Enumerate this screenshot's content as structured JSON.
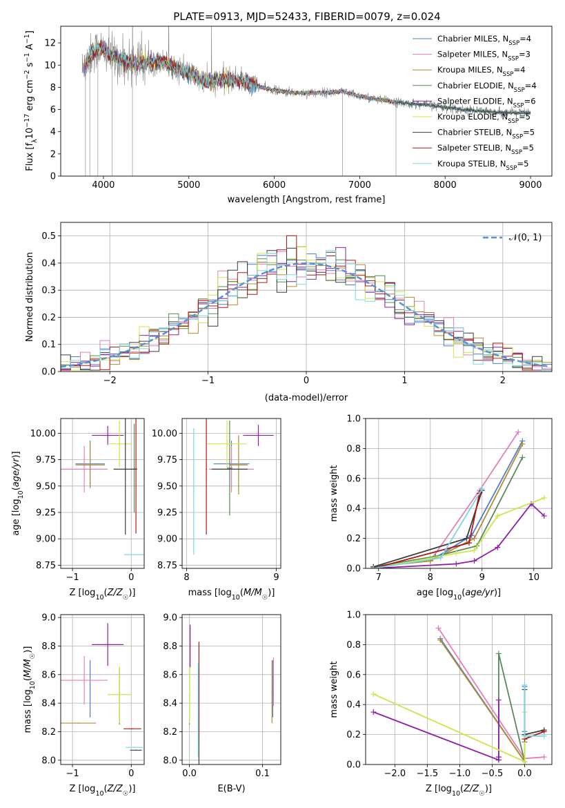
{
  "figure": {
    "title": "PLATE=0913, MJD=52433, FIBERID=0079, z=0.024",
    "model_colors": {
      "Chabrier MILES": "#4a7ed0",
      "Salpeter MILES": "#e47fb8",
      "Kroupa MILES": "#b38a30",
      "Chabrier ELODIE": "#568a56",
      "Salpeter ELODIE": "#8d1ea8",
      "Kroupa ELODIE": "#cfe548",
      "Chabrier STELIB": "#3a3a3a",
      "Salpeter STELIB": "#b01515",
      "Kroupa STELIB": "#7bd7e0"
    }
  },
  "chart_data": [
    {
      "id": "spectrum",
      "type": "line",
      "xlabel": "wavelength [Angstrom, rest frame]",
      "ylabel_parts": [
        "Flux [f",
        "λ",
        "10",
        "−17",
        " erg cm",
        "−2",
        " s",
        "−1",
        " A",
        "−1",
        "]"
      ],
      "xlim": [
        3500,
        9250
      ],
      "ylim": [
        0,
        13.5
      ],
      "xticks": [
        4000,
        5000,
        6000,
        7000,
        8000,
        9000
      ],
      "yticks": [
        0,
        2,
        4,
        6,
        8,
        10,
        12
      ],
      "grid": false,
      "legend_position": "top-right",
      "observed_color": "#808080",
      "observed_continuum": [
        [
          3750,
          9.6
        ],
        [
          3850,
          10.9
        ],
        [
          3950,
          11.6
        ],
        [
          4050,
          11.0
        ],
        [
          4150,
          10.6
        ],
        [
          4300,
          10.3
        ],
        [
          4500,
          10.2
        ],
        [
          4700,
          10.3
        ],
        [
          4860,
          9.7
        ],
        [
          5000,
          9.3
        ],
        [
          5200,
          8.5
        ],
        [
          5400,
          8.7
        ],
        [
          5600,
          8.6
        ],
        [
          5900,
          7.9
        ],
        [
          6100,
          7.6
        ],
        [
          6300,
          7.5
        ],
        [
          6560,
          7.5
        ],
        [
          6800,
          7.6
        ],
        [
          7000,
          7.2
        ],
        [
          7200,
          6.9
        ],
        [
          7500,
          6.6
        ],
        [
          7800,
          6.4
        ],
        [
          8000,
          6.2
        ],
        [
          8200,
          6.0
        ],
        [
          8500,
          5.8
        ],
        [
          8800,
          5.7
        ],
        [
          9000,
          5.7
        ]
      ],
      "legend": [
        {
          "model": "Chabrier MILES",
          "label": "Chabrier MILES, N",
          "sub": "SSP",
          "tail": "=4"
        },
        {
          "model": "Salpeter MILES",
          "label": "Salpeter MILES, N",
          "sub": "SSP",
          "tail": "=3"
        },
        {
          "model": "Kroupa MILES",
          "label": "Kroupa MILES, N",
          "sub": "SSP",
          "tail": "=4"
        },
        {
          "model": "Chabrier ELODIE",
          "label": "Chabrier ELODIE, N",
          "sub": "SSP",
          "tail": "=4"
        },
        {
          "model": "Salpeter ELODIE",
          "label": "Salpeter ELODIE, N",
          "sub": "SSP",
          "tail": "=6"
        },
        {
          "model": "Kroupa ELODIE",
          "label": "Kroupa ELODIE, N",
          "sub": "SSP",
          "tail": "=5"
        },
        {
          "model": "Chabrier STELIB",
          "label": "Chabrier STELIB, N",
          "sub": "SSP",
          "tail": "=5"
        },
        {
          "model": "Salpeter STELIB",
          "label": "Salpeter STELIB, N",
          "sub": "SSP",
          "tail": "=5"
        },
        {
          "model": "Kroupa STELIB",
          "label": "Kroupa STELIB, N",
          "sub": "SSP",
          "tail": "=5"
        }
      ]
    },
    {
      "id": "residuals",
      "type": "line",
      "xlabel": "(data-model)/error",
      "ylabel": "Normed distribution",
      "xlim": [
        -2.5,
        2.5
      ],
      "ylim": [
        0,
        0.55
      ],
      "xticks": [
        -2,
        -1,
        0,
        1,
        2
      ],
      "xtick_labels": [
        "−2",
        "−1",
        "0",
        "1",
        "2"
      ],
      "yticks": [
        0,
        0.1,
        0.2,
        0.3,
        0.4,
        0.5
      ],
      "ytick_labels": [
        "0.0",
        "0.1",
        "0.2",
        "0.3",
        "0.4",
        "0.5"
      ],
      "grid": true,
      "legend_position": "top-right",
      "legend_label": "𝒩(0, 1)",
      "reference_curve": {
        "mean": 0,
        "sigma": 1,
        "color": "#5b8fd6"
      },
      "histogram_bin_width": 0.1
    },
    {
      "id": "age_vs_Z",
      "type": "scatter",
      "xlabel": "Z [log10(Z/Z☉)]",
      "ylabel": "age [log10(age/yr)]",
      "xlim": [
        -1.2,
        0.22
      ],
      "ylim": [
        8.72,
        10.14
      ],
      "xticks": [
        -1,
        0
      ],
      "xtick_labels": [
        "−1",
        "0"
      ],
      "yticks": [
        8.75,
        9.0,
        9.25,
        9.5,
        9.75,
        10.0
      ],
      "ytick_labels": [
        "8.75",
        "9.00",
        "9.25",
        "9.50",
        "9.75",
        "10.00"
      ],
      "grid": true,
      "errorbars": [
        {
          "model": "Chabrier MILES",
          "x": -0.7,
          "xerr": 0.25,
          "y": 9.71,
          "yerr": 0.22
        },
        {
          "model": "Salpeter MILES",
          "x": -0.8,
          "xerr": 0.4,
          "y": 9.66,
          "yerr": 0.22
        },
        {
          "model": "Kroupa MILES",
          "x": -0.7,
          "xerr": 0.25,
          "y": 9.7,
          "yerr": 0.22
        },
        {
          "model": "Chabrier ELODIE",
          "x": 0.05,
          "xerr": 0.0,
          "y": 9.67,
          "yerr": 0.42
        },
        {
          "model": "Salpeter ELODIE",
          "x": -0.4,
          "xerr": 0.27,
          "y": 9.98,
          "yerr": 0.09
        },
        {
          "model": "Kroupa ELODIE",
          "x": -0.2,
          "xerr": 0.2,
          "y": 9.9,
          "yerr": 0.22
        },
        {
          "model": "Chabrier STELIB",
          "x": -0.1,
          "xerr": 0.2,
          "y": 9.66,
          "yerr": 0.62
        },
        {
          "model": "Salpeter STELIB",
          "x": 0.08,
          "xerr": 0.02,
          "y": 9.66,
          "yerr": 0.61
        },
        {
          "model": "Kroupa STELIB",
          "x": 0.05,
          "xerr": 0.17,
          "y": 8.85,
          "yerr": 0.0
        }
      ]
    },
    {
      "id": "age_vs_mass",
      "type": "scatter",
      "xlabel": "mass [log10(M/M☉)]",
      "ylabel": "",
      "xlim": [
        7.95,
        9.05
      ],
      "ylim": [
        8.72,
        10.14
      ],
      "xticks": [
        8,
        9
      ],
      "yticks": [
        8.75,
        9.0,
        9.25,
        9.5,
        9.75,
        10.0
      ],
      "ytick_labels": [
        "8.75",
        "9.00",
        "9.25",
        "9.50",
        "9.75",
        "10.00"
      ],
      "grid": true,
      "errorbars": [
        {
          "model": "Chabrier MILES",
          "x": 8.5,
          "xerr": 0.2,
          "y": 9.71,
          "yerr": 0.22
        },
        {
          "model": "Salpeter MILES",
          "x": 8.5,
          "xerr": 0.25,
          "y": 9.66,
          "yerr": 0.22
        },
        {
          "model": "Kroupa MILES",
          "x": 8.58,
          "xerr": 0.1,
          "y": 9.7,
          "yerr": 0.28
        },
        {
          "model": "Chabrier ELODIE",
          "x": 8.48,
          "xerr": 0.03,
          "y": 9.67,
          "yerr": 0.45
        },
        {
          "model": "Salpeter ELODIE",
          "x": 8.8,
          "xerr": 0.17,
          "y": 9.98,
          "yerr": 0.1
        },
        {
          "model": "Kroupa ELODIE",
          "x": 8.45,
          "xerr": 0.22,
          "y": 9.9,
          "yerr": 0.22
        },
        {
          "model": "Chabrier STELIB",
          "x": 8.48,
          "xerr": 0.2,
          "y": 9.66,
          "yerr": 0.0
        },
        {
          "model": "Salpeter STELIB",
          "x": 8.22,
          "xerr": 0.0,
          "y": 9.66,
          "yerr": 0.62
        },
        {
          "model": "Kroupa STELIB",
          "x": 8.08,
          "xerr": 0.0,
          "y": 9.45,
          "yerr": 0.6
        }
      ]
    },
    {
      "id": "mass_weight_vs_age",
      "type": "line",
      "xlabel": "age [log10(age/yr)]",
      "ylabel": "mass weight",
      "xlim": [
        6.75,
        10.35
      ],
      "ylim": [
        0,
        1.0
      ],
      "xticks": [
        7,
        8,
        9,
        10
      ],
      "yticks": [
        0,
        0.2,
        0.4,
        0.6,
        0.8,
        1.0
      ],
      "ytick_labels": [
        "0.0",
        "0.2",
        "0.4",
        "0.6",
        "0.8",
        "1.0"
      ],
      "grid": true,
      "series": [
        {
          "model": "Chabrier MILES",
          "x": [
            6.9,
            8.0,
            8.8,
            9.78
          ],
          "y": [
            0.01,
            0.05,
            0.22,
            0.85
          ]
        },
        {
          "model": "Salpeter MILES",
          "x": [
            8.0,
            8.95,
            9.7
          ],
          "y": [
            0.05,
            0.52,
            0.91
          ]
        },
        {
          "model": "Kroupa MILES",
          "x": [
            6.9,
            8.0,
            8.85,
            9.78
          ],
          "y": [
            0.01,
            0.05,
            0.2,
            0.83
          ]
        },
        {
          "model": "Chabrier ELODIE",
          "x": [
            6.9,
            8.1,
            8.9,
            9.78
          ],
          "y": [
            0.01,
            0.08,
            0.15,
            0.74
          ]
        },
        {
          "model": "Salpeter ELODIE",
          "x": [
            6.9,
            8.5,
            8.85,
            9.3,
            9.95,
            10.2
          ],
          "y": [
            0.0,
            0.03,
            0.05,
            0.14,
            0.43,
            0.35
          ]
        },
        {
          "model": "Kroupa ELODIE",
          "x": [
            6.9,
            8.5,
            8.85,
            9.3,
            10.2
          ],
          "y": [
            0.0,
            0.1,
            0.12,
            0.35,
            0.47
          ]
        },
        {
          "model": "Chabrier STELIB",
          "x": [
            6.9,
            8.7,
            9.0
          ],
          "y": [
            0.01,
            0.2,
            0.52
          ]
        },
        {
          "model": "Salpeter STELIB",
          "x": [
            6.9,
            8.75,
            8.95
          ],
          "y": [
            0.0,
            0.17,
            0.5
          ]
        },
        {
          "model": "Kroupa STELIB",
          "x": [
            6.9,
            8.2,
            9.0
          ],
          "y": [
            0.0,
            0.07,
            0.53
          ]
        }
      ]
    },
    {
      "id": "mass_vs_Z",
      "type": "scatter",
      "xlabel": "Z [log10(Z/Z☉)]",
      "ylabel": "mass [log10(M/M☉)]",
      "xlim": [
        -1.2,
        0.22
      ],
      "ylim": [
        7.97,
        9.02
      ],
      "xticks": [
        -1,
        0
      ],
      "xtick_labels": [
        "−1",
        "0"
      ],
      "yticks": [
        8.0,
        8.2,
        8.4,
        8.6,
        8.8,
        9.0
      ],
      "ytick_labels": [
        "8.0",
        "8.2",
        "8.4",
        "8.6",
        "8.8",
        "9.0"
      ],
      "grid": true,
      "errorbars": [
        {
          "model": "Chabrier MILES",
          "x": -0.7,
          "xerr": 0.0,
          "y": 8.5,
          "yerr": 0.2
        },
        {
          "model": "Salpeter MILES",
          "x": -0.8,
          "xerr": 0.4,
          "y": 8.56,
          "yerr": 0.17
        },
        {
          "model": "Kroupa MILES",
          "x": -0.9,
          "xerr": 0.3,
          "y": 8.26,
          "yerr": 0.0
        },
        {
          "model": "Chabrier ELODIE",
          "x": -0.2,
          "xerr": 0.0,
          "y": 8.45,
          "yerr": 0.2
        },
        {
          "model": "Salpeter ELODIE",
          "x": -0.4,
          "xerr": 0.27,
          "y": 8.81,
          "yerr": 0.15
        },
        {
          "model": "Kroupa ELODIE",
          "x": -0.2,
          "xerr": 0.2,
          "y": 8.46,
          "yerr": 0.2
        },
        {
          "model": "Chabrier STELIB",
          "x": 0.08,
          "xerr": 0.1,
          "y": 8.07,
          "yerr": 0.0
        },
        {
          "model": "Salpeter STELIB",
          "x": 0.02,
          "xerr": 0.15,
          "y": 8.22,
          "yerr": 0.0
        },
        {
          "model": "Kroupa STELIB",
          "x": 0.05,
          "xerr": 0.15,
          "y": 8.09,
          "yerr": 0.0
        }
      ]
    },
    {
      "id": "mass_vs_ebv",
      "type": "scatter",
      "xlabel": "E(B-V)",
      "ylabel": "",
      "xlim": [
        -0.01,
        0.125
      ],
      "ylim": [
        7.97,
        9.02
      ],
      "xticks": [
        0.0,
        0.1
      ],
      "xtick_labels": [
        "0.0",
        "0.1"
      ],
      "yticks": [
        8.0,
        8.2,
        8.4,
        8.6,
        8.8,
        9.0
      ],
      "ytick_labels": [
        "8.0",
        "8.2",
        "8.4",
        "8.6",
        "8.8",
        "9.0"
      ],
      "grid": true,
      "errorbars": [
        {
          "model": "Chabrier MILES",
          "x": 0.114,
          "xerr": 0,
          "y": 8.5,
          "yerr": 0.2
        },
        {
          "model": "Salpeter MILES",
          "x": 0.115,
          "xerr": 0,
          "y": 8.55,
          "yerr": 0.17
        },
        {
          "model": "Kroupa MILES",
          "x": 0.113,
          "xerr": 0,
          "y": 8.48,
          "yerr": 0.22
        },
        {
          "model": "Chabrier ELODIE",
          "x": 0.0,
          "xerr": 0,
          "y": 8.45,
          "yerr": 0.2
        },
        {
          "model": "Salpeter ELODIE",
          "x": 0.001,
          "xerr": 0,
          "y": 8.8,
          "yerr": 0.15
        },
        {
          "model": "Kroupa ELODIE",
          "x": 0.0,
          "xerr": 0,
          "y": 8.46,
          "yerr": 0.2
        },
        {
          "model": "Chabrier STELIB",
          "x": 0.013,
          "xerr": 0,
          "y": 8.3,
          "yerr": 0.35
        },
        {
          "model": "Salpeter STELIB",
          "x": 0.013,
          "xerr": 0,
          "y": 8.5,
          "yerr": 0.33
        },
        {
          "model": "Kroupa STELIB",
          "x": 0.012,
          "xerr": 0,
          "y": 8.35,
          "yerr": 0.33
        }
      ]
    },
    {
      "id": "mass_weight_vs_Z",
      "type": "line",
      "xlabel": "Z [log10(Z/Z☉)]",
      "ylabel": "mass weight",
      "xlim": [
        -2.45,
        0.42
      ],
      "ylim": [
        0,
        1.0
      ],
      "xticks": [
        -2.0,
        -1.5,
        -1.0,
        -0.5,
        0.0
      ],
      "xtick_labels": [
        "−2.0",
        "−1.5",
        "−1.0",
        "−0.5",
        "0.0"
      ],
      "yticks": [
        0,
        0.2,
        0.4,
        0.6,
        0.8,
        1.0
      ],
      "ytick_labels": [
        "0.0",
        "0.2",
        "0.4",
        "0.6",
        "0.8",
        "1.0"
      ],
      "grid": true,
      "series": [
        {
          "model": "Chabrier MILES",
          "x": [
            -1.3,
            0.0,
            0.0,
            0.0
          ],
          "y": [
            0.84,
            0.02,
            0.22,
            0.52
          ]
        },
        {
          "model": "Salpeter MILES",
          "x": [
            -1.33,
            0.0,
            0.3
          ],
          "y": [
            0.91,
            0.04,
            0.05
          ]
        },
        {
          "model": "Kroupa MILES",
          "x": [
            -1.3,
            0.0,
            0.0
          ],
          "y": [
            0.83,
            0.02,
            0.2
          ]
        },
        {
          "model": "Chabrier ELODIE",
          "x": [
            -0.4,
            -0.4,
            0.0,
            0.0
          ],
          "y": [
            0.03,
            0.74,
            0.02,
            0.15
          ]
        },
        {
          "model": "Salpeter ELODIE",
          "x": [
            -2.33,
            -0.4,
            -0.4,
            -0.4
          ],
          "y": [
            0.35,
            0.03,
            0.43,
            0.05
          ]
        },
        {
          "model": "Kroupa ELODIE",
          "x": [
            -2.33,
            0.0,
            0.0
          ],
          "y": [
            0.47,
            0.02,
            0.35
          ]
        },
        {
          "model": "Chabrier STELIB",
          "x": [
            0.0,
            0.0,
            0.3
          ],
          "y": [
            0.5,
            0.2,
            0.23
          ]
        },
        {
          "model": "Salpeter STELIB",
          "x": [
            0.0,
            0.3
          ],
          "y": [
            0.17,
            0.22
          ]
        },
        {
          "model": "Kroupa STELIB",
          "x": [
            0.0,
            0.0,
            0.3
          ],
          "y": [
            0.53,
            0.19,
            0.19
          ]
        }
      ]
    }
  ]
}
